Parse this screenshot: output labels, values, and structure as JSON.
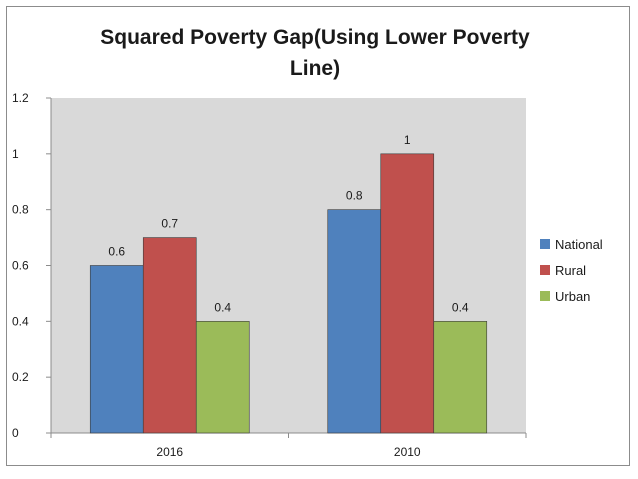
{
  "chart_data": {
    "type": "bar",
    "title": "Squared Poverty Gap(Using Lower Poverty Line)",
    "categories": [
      "2016",
      "2010"
    ],
    "series": [
      {
        "name": "National",
        "values": [
          0.6,
          0.8
        ],
        "color": "#4f81bd"
      },
      {
        "name": "Rural",
        "values": [
          0.7,
          1
        ],
        "color": "#c0504d"
      },
      {
        "name": "Urban",
        "values": [
          0.4,
          0.4
        ],
        "color": "#9bbb59"
      }
    ],
    "ylim": [
      0,
      1.2
    ],
    "yticks": [
      "0",
      "0.2",
      "0.4",
      "0.6",
      "0.8",
      "1",
      "1.2"
    ],
    "data_labels": [
      [
        "0.6",
        "0.8"
      ],
      [
        "0.7",
        "1"
      ],
      [
        "0.4",
        "0.4"
      ]
    ],
    "grid": false,
    "plot_background": "#d9d9d9",
    "legend": "right"
  }
}
